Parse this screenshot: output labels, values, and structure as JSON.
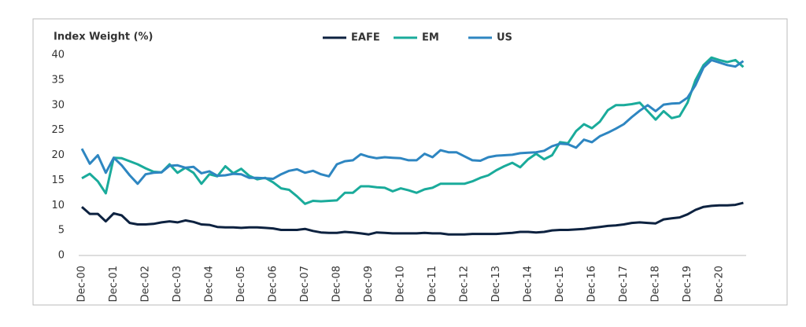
{
  "chart_data": {
    "type": "line",
    "ylabel": "Index Weight (%)",
    "categories": [
      "Dec-00",
      null,
      null,
      null,
      "Dec-01",
      null,
      null,
      null,
      "Dec-02",
      null,
      null,
      null,
      "Dec-03",
      null,
      null,
      null,
      "Dec-04",
      null,
      null,
      null,
      "Dec-05",
      null,
      null,
      null,
      "Dec-06",
      null,
      null,
      null,
      "Dec-07",
      null,
      null,
      null,
      "Dec-08",
      null,
      null,
      null,
      "Dec-09",
      null,
      null,
      null,
      "Dec-10",
      null,
      null,
      null,
      "Dec-11",
      null,
      null,
      null,
      "Dec-12",
      null,
      null,
      null,
      "Dec-13",
      null,
      null,
      null,
      "Dec-14",
      null,
      null,
      null,
      "Dec-15",
      null,
      null,
      null,
      "Dec-16",
      null,
      null,
      null,
      "Dec-17",
      null,
      null,
      null,
      "Dec-18",
      null,
      null,
      null,
      "Dec-19",
      null,
      null,
      null,
      "Dec-20",
      null,
      null,
      null
    ],
    "series": [
      {
        "name": "EAFE",
        "color": "#0d2240",
        "values": [
          9.7,
          8.3,
          8.3,
          6.8,
          8.4,
          8.0,
          6.5,
          6.2,
          6.2,
          6.3,
          6.6,
          6.8,
          6.6,
          7.0,
          6.7,
          6.2,
          6.1,
          5.7,
          5.6,
          5.6,
          5.5,
          5.6,
          5.6,
          5.5,
          5.4,
          5.1,
          5.1,
          5.1,
          5.3,
          4.9,
          4.6,
          4.5,
          4.5,
          4.7,
          4.6,
          4.4,
          4.2,
          4.6,
          4.5,
          4.4,
          4.4,
          4.4,
          4.4,
          4.5,
          4.4,
          4.4,
          4.2,
          4.2,
          4.2,
          4.3,
          4.3,
          4.3,
          4.3,
          4.4,
          4.5,
          4.7,
          4.7,
          4.6,
          4.7,
          5.0,
          5.1,
          5.1,
          5.2,
          5.3,
          5.5,
          5.7,
          5.9,
          6.0,
          6.2,
          6.5,
          6.6,
          6.5,
          6.4,
          7.2,
          7.4,
          7.6,
          8.2,
          9.1,
          9.7,
          9.9,
          10.0,
          10.0,
          10.1,
          10.5
        ]
      },
      {
        "name": "EM",
        "color": "#1aab9b",
        "values": [
          15.4,
          16.3,
          14.8,
          12.4,
          19.5,
          19.4,
          18.8,
          18.2,
          17.4,
          16.7,
          16.6,
          18.2,
          16.5,
          17.5,
          16.5,
          14.3,
          16.2,
          15.8,
          17.8,
          16.4,
          17.3,
          15.9,
          15.2,
          15.5,
          14.6,
          13.4,
          13.1,
          11.8,
          10.3,
          10.9,
          10.8,
          10.9,
          11.0,
          12.5,
          12.5,
          13.8,
          13.8,
          13.6,
          13.5,
          12.8,
          13.4,
          13.0,
          12.5,
          13.2,
          13.5,
          14.3,
          14.3,
          14.3,
          14.3,
          14.8,
          15.5,
          16.0,
          17.0,
          17.8,
          18.5,
          17.6,
          19.2,
          20.3,
          19.2,
          20.0,
          22.6,
          22.4,
          24.8,
          26.2,
          25.4,
          26.7,
          29.0,
          30.0,
          30.0,
          30.2,
          30.5,
          28.8,
          27.1,
          28.8,
          27.4,
          27.8,
          30.5,
          35.0,
          38.0,
          39.5,
          39.0,
          38.6,
          39.0,
          37.6
        ]
      },
      {
        "name": "US",
        "color": "#2e86c1",
        "values": [
          21.3,
          18.3,
          20.0,
          16.5,
          19.5,
          18.0,
          16.0,
          14.3,
          16.2,
          16.5,
          16.6,
          17.9,
          18.0,
          17.5,
          17.7,
          16.4,
          16.8,
          15.9,
          16.0,
          16.3,
          16.2,
          15.5,
          15.5,
          15.4,
          15.3,
          16.2,
          16.9,
          17.2,
          16.5,
          16.9,
          16.2,
          15.8,
          18.2,
          18.8,
          19.0,
          20.2,
          19.7,
          19.4,
          19.6,
          19.5,
          19.4,
          19.0,
          19.0,
          20.3,
          19.6,
          21.0,
          20.6,
          20.6,
          19.8,
          19.0,
          18.9,
          19.6,
          19.9,
          20.0,
          20.1,
          20.4,
          20.5,
          20.6,
          20.9,
          21.8,
          22.3,
          22.2,
          21.5,
          23.1,
          22.6,
          23.8,
          24.5,
          25.3,
          26.2,
          27.6,
          28.9,
          30.0,
          28.8,
          30.1,
          30.3,
          30.4,
          31.5,
          34.0,
          37.5,
          39.0,
          38.5,
          38.0,
          37.7,
          38.8
        ]
      }
    ],
    "ylim": [
      0,
      40
    ],
    "yticks": [
      0,
      5,
      10,
      15,
      20,
      25,
      30,
      35,
      40
    ],
    "grid": false,
    "legend": "top"
  }
}
